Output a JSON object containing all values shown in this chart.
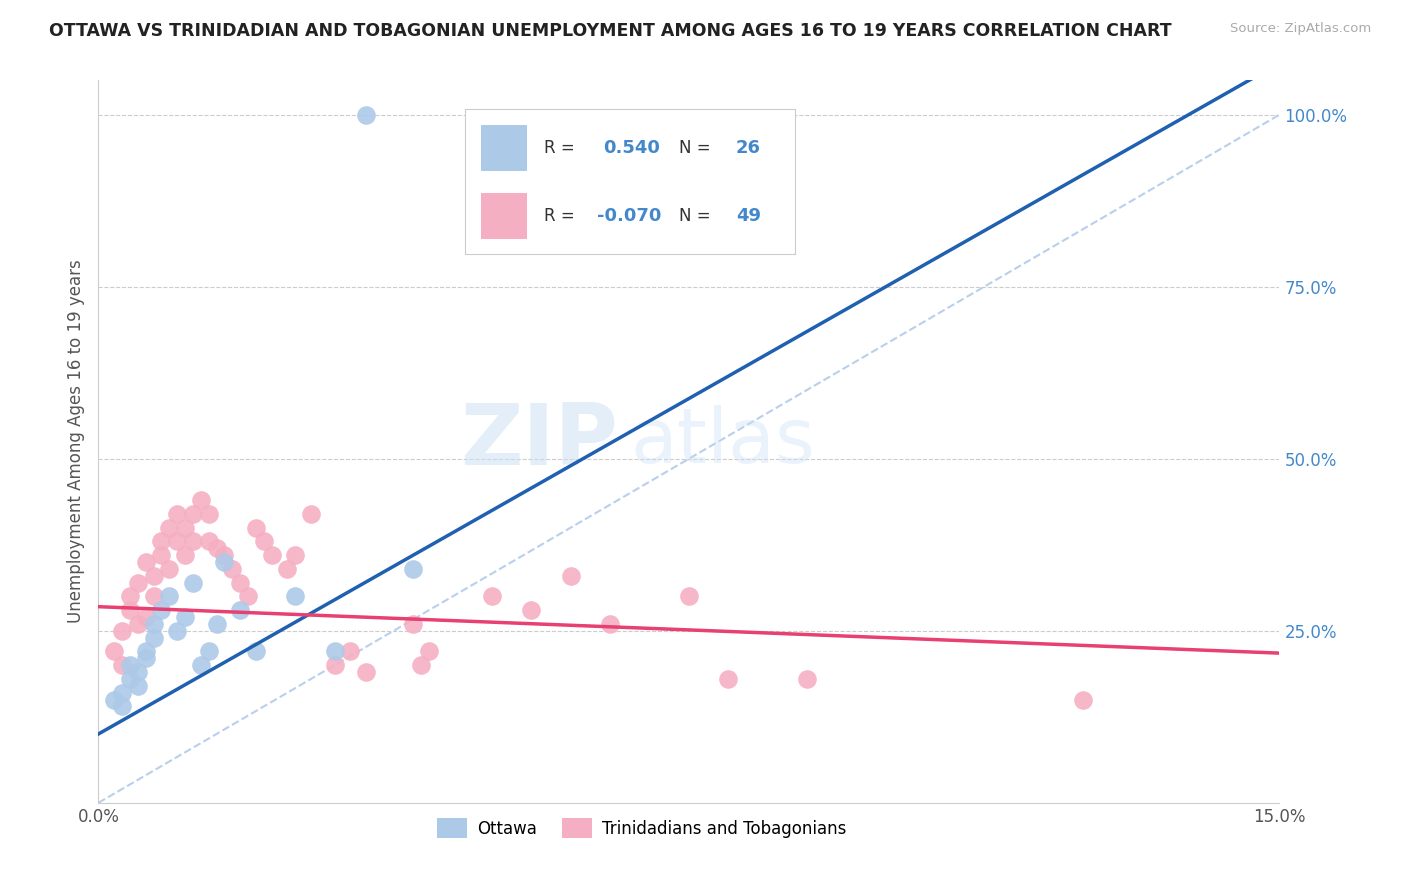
{
  "title": "OTTAWA VS TRINIDADIAN AND TOBAGONIAN UNEMPLOYMENT AMONG AGES 16 TO 19 YEARS CORRELATION CHART",
  "source": "Source: ZipAtlas.com",
  "ylabel": "Unemployment Among Ages 16 to 19 years",
  "xlim": [
    0.0,
    0.15
  ],
  "ylim": [
    0.0,
    1.05
  ],
  "ottawa_R": 0.54,
  "ottawa_N": 26,
  "tnt_R": -0.07,
  "tnt_N": 49,
  "ottawa_color": "#adc9e8",
  "tnt_color": "#f5afc3",
  "ottawa_line_color": "#2060b0",
  "tnt_line_color": "#e84070",
  "ref_line_color": "#b8d0ec",
  "watermark_zip": "ZIP",
  "watermark_atlas": "atlas",
  "background_color": "#ffffff",
  "grid_color": "#cccccc",
  "ottawa_x": [
    0.002,
    0.003,
    0.003,
    0.004,
    0.004,
    0.005,
    0.005,
    0.006,
    0.006,
    0.007,
    0.007,
    0.008,
    0.009,
    0.01,
    0.011,
    0.012,
    0.013,
    0.014,
    0.015,
    0.016,
    0.018,
    0.02,
    0.025,
    0.03,
    0.04,
    0.034
  ],
  "ottawa_y": [
    0.15,
    0.14,
    0.16,
    0.18,
    0.2,
    0.17,
    0.19,
    0.21,
    0.22,
    0.24,
    0.26,
    0.28,
    0.3,
    0.25,
    0.27,
    0.32,
    0.2,
    0.22,
    0.26,
    0.35,
    0.28,
    0.22,
    0.3,
    0.22,
    0.34,
    1.0
  ],
  "tnt_x": [
    0.002,
    0.003,
    0.003,
    0.004,
    0.004,
    0.005,
    0.005,
    0.006,
    0.006,
    0.007,
    0.007,
    0.008,
    0.008,
    0.009,
    0.009,
    0.01,
    0.01,
    0.011,
    0.011,
    0.012,
    0.012,
    0.013,
    0.014,
    0.014,
    0.015,
    0.016,
    0.017,
    0.018,
    0.019,
    0.02,
    0.021,
    0.022,
    0.024,
    0.025,
    0.027,
    0.03,
    0.032,
    0.034,
    0.04,
    0.041,
    0.042,
    0.05,
    0.055,
    0.06,
    0.065,
    0.075,
    0.08,
    0.09,
    0.125
  ],
  "tnt_y": [
    0.22,
    0.2,
    0.25,
    0.28,
    0.3,
    0.26,
    0.32,
    0.27,
    0.35,
    0.33,
    0.3,
    0.36,
    0.38,
    0.4,
    0.34,
    0.38,
    0.42,
    0.4,
    0.36,
    0.42,
    0.38,
    0.44,
    0.38,
    0.42,
    0.37,
    0.36,
    0.34,
    0.32,
    0.3,
    0.4,
    0.38,
    0.36,
    0.34,
    0.36,
    0.42,
    0.2,
    0.22,
    0.19,
    0.26,
    0.2,
    0.22,
    0.3,
    0.28,
    0.33,
    0.26,
    0.3,
    0.18,
    0.18,
    0.15
  ]
}
